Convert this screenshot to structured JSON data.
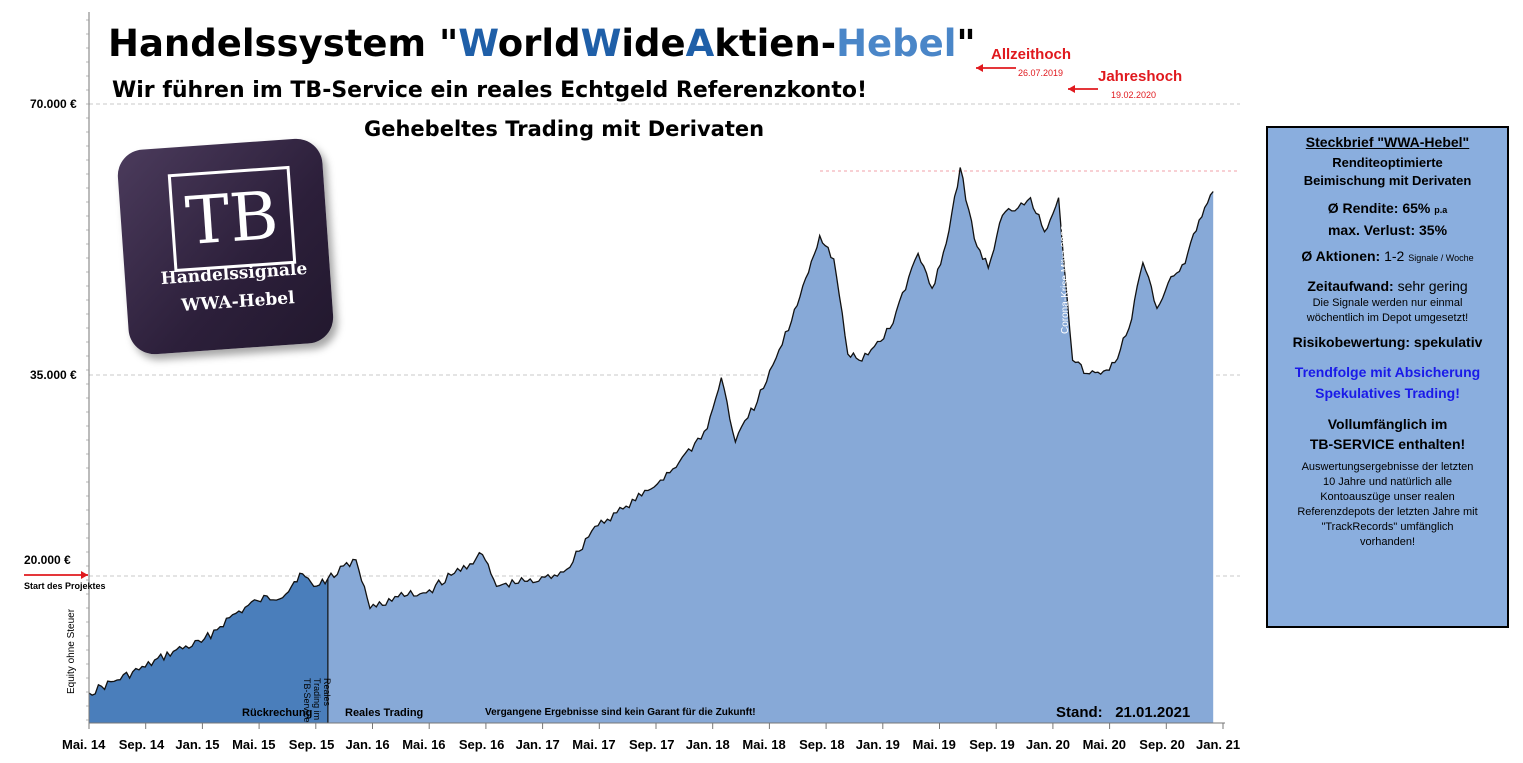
{
  "header": {
    "title_prefix": "Handelssystem \"",
    "title_w1": "W",
    "title_orld": "orld",
    "title_w2": "W",
    "title_ide": "ide",
    "title_a": "A",
    "title_ktien": "ktien-",
    "title_hebel": "Hebel",
    "title_suffix": "\"",
    "subtitle1": "Wir führen im TB-Service ein reales Echtgeld Referenzkonto!",
    "subtitle2": "Gehebeltes Trading mit Derivaten"
  },
  "logo": {
    "box": "TB",
    "line1": "Handelssignale",
    "line2": "WWA-Hebel"
  },
  "annotations": {
    "allzeithoch": "Allzeithoch",
    "allzeithoch_date": "26.07.2019",
    "jahreshoch": "Jahreshoch",
    "jahreshoch_date": "19.02.2020",
    "start": "Start des Projektes",
    "corona": "Corona-Krise März 2020",
    "reales_trading_vert": "Reales Trading im TB-Service",
    "equity": "Equity ohne Steuer",
    "rueckrechnung": "Rückrechung",
    "reales_trading": "Reales Trading",
    "disclaimer": "Vergangene Ergebnisse sind kein Garant für die Zukunft!",
    "stand_label": "Stand:",
    "stand_date": "21.01.2021"
  },
  "info_box": {
    "heading": "Steckbrief \"WWA-Hebel\"",
    "line1": "Renditeoptimierte",
    "line2": "Beimischung mit Derivaten",
    "rendite_label": "Ø Rendite: 65%",
    "rendite_unit": "p.a",
    "verlust": "max. Verlust: 35%",
    "aktionen_label": "Ø Aktionen:",
    "aktionen_value": "1-2",
    "aktionen_unit": "Signale / Woche",
    "zeit_label": "Zeitaufwand:",
    "zeit_value": "sehr gering",
    "signale1": "Die Signale werden nur einmal",
    "signale2": "wöchentlich im Depot umgesetzt!",
    "risiko": "Risikobewertung: spekulativ",
    "trend1": "Trendfolge mit Absicherung",
    "trend2": "Spekulatives Trading!",
    "voll1": "Vollumfänglich im",
    "voll2": "TB-SERVICE enthalten!",
    "ausw1": "Auswertungsergebnisse der letzten",
    "ausw2": "10 Jahre und natürlich alle",
    "ausw3": "Kontoauszüge unser realen",
    "ausw4": "Referenzdepots der letzten Jahre mit",
    "ausw5": "\"TrackRecords\" umfänglich",
    "ausw6": "vorhanden!"
  },
  "colors": {
    "backtest": "#4a7ebb",
    "real": "#87a9d7",
    "accent_red": "#e0191e",
    "accent_blue": "#1a1ae8"
  },
  "chart_data": {
    "type": "area",
    "xlabel": "",
    "ylabel": "",
    "y_ticks": [
      20000,
      35000,
      70000
    ],
    "y_tick_labels": [
      "20.000 €",
      "35.000 €",
      "70.000 €"
    ],
    "x_tick_labels": [
      "Mai. 14",
      "Sep. 14",
      "Jan. 15",
      "Mai. 15",
      "Sep. 15",
      "Jan. 16",
      "Mai. 16",
      "Sep. 16",
      "Jan. 17",
      "Mai. 17",
      "Sep. 17",
      "Jan. 18",
      "Mai. 18",
      "Sep. 18",
      "Jan. 19",
      "Mai. 19",
      "Sep. 19",
      "Jan. 20",
      "Mai. 20",
      "Sep. 20",
      "Jan. 21"
    ],
    "series": [
      {
        "segment": "Rückrechung",
        "x": [
          "2014-05",
          "2014-07",
          "2014-09",
          "2014-11",
          "2015-01",
          "2015-03",
          "2015-05",
          "2015-07",
          "2015-08",
          "2015-09",
          "2015-10"
        ],
        "values": [
          11000,
          12000,
          13000,
          14200,
          14900,
          16800,
          18100,
          18600,
          20200,
          19200,
          19800
        ]
      },
      {
        "segment": "Reales Trading",
        "x": [
          "2015-10",
          "2015-12",
          "2016-01",
          "2016-03",
          "2016-05",
          "2016-07",
          "2016-09",
          "2016-10",
          "2016-12",
          "2017-01",
          "2017-03",
          "2017-05",
          "2017-07",
          "2017-09",
          "2017-11",
          "2018-01",
          "2018-02",
          "2018-03",
          "2018-05",
          "2018-07",
          "2018-08",
          "2018-09",
          "2018-10",
          "2018-11",
          "2018-12",
          "2019-02",
          "2019-04",
          "2019-05",
          "2019-06",
          "2019-07",
          "2019-08",
          "2019-09",
          "2019-10",
          "2019-12",
          "2020-01",
          "2020-02",
          "2020-03",
          "2020-04",
          "2020-05",
          "2020-06",
          "2020-07",
          "2020-08",
          "2020-09",
          "2020-10",
          "2020-11",
          "2020-12",
          "2021-01"
        ],
        "values": [
          19800,
          21200,
          17500,
          18400,
          18700,
          20200,
          21600,
          19200,
          19600,
          19600,
          20500,
          23700,
          25000,
          26500,
          28500,
          31000,
          34800,
          30000,
          34000,
          42000,
          47500,
          53000,
          50000,
          37700,
          36800,
          41000,
          50700,
          46200,
          52000,
          61800,
          52600,
          48800,
          55600,
          57900,
          53500,
          57900,
          36900,
          35200,
          35100,
          36600,
          41000,
          49500,
          43600,
          47700,
          49400,
          55000,
          58700
        ]
      }
    ]
  }
}
